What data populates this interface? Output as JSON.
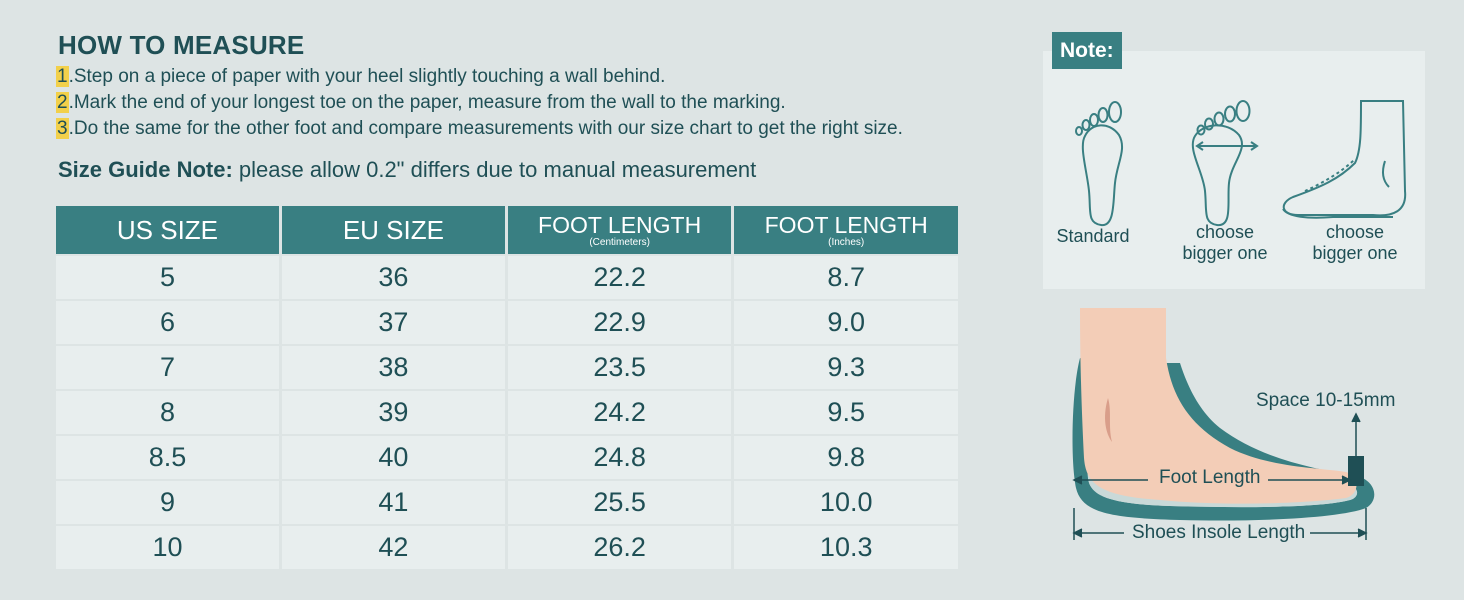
{
  "header": {
    "title": "HOW TO MEASURE"
  },
  "steps": [
    {
      "num": "1",
      "text": ".Step on a piece of paper with your heel slightly touching a wall behind."
    },
    {
      "num": "2",
      "text": ".Mark the end of your longest toe on the paper, measure from the wall to the marking."
    },
    {
      "num": "3",
      "text": ".Do the same for the other foot and compare measurements with our size chart to get the right size."
    }
  ],
  "guide": {
    "label": "Size Guide Note:",
    "text": " please allow 0.2\" differs due to manual measurement"
  },
  "table": {
    "headers": [
      {
        "main": "US SIZE",
        "sub": ""
      },
      {
        "main": "EU SIZE",
        "sub": ""
      },
      {
        "main": "FOOT LENGTH",
        "sub": "(Centimeters)"
      },
      {
        "main": "FOOT LENGTH",
        "sub": "(Inches)"
      }
    ],
    "rows": [
      [
        "5",
        "36",
        "22.2",
        "8.7"
      ],
      [
        "6",
        "37",
        "22.9",
        "9.0"
      ],
      [
        "7",
        "38",
        "23.5",
        "9.3"
      ],
      [
        "8",
        "39",
        "24.2",
        "9.5"
      ],
      [
        "8.5",
        "40",
        "24.8",
        "9.8"
      ],
      [
        "9",
        "41",
        "25.5",
        "10.0"
      ],
      [
        "10",
        "42",
        "26.2",
        "10.3"
      ]
    ]
  },
  "note": {
    "tag": "Note:",
    "labels": [
      "Standard",
      "choose",
      "bigger one",
      "choose",
      "bigger one"
    ]
  },
  "diagram": {
    "space": "Space 10-15mm",
    "foot_length": "Foot Length",
    "insole_length": "Shoes Insole Length"
  },
  "colors": {
    "teal": "#397f82",
    "dark_text": "#1f4f55",
    "highlight": "#f2d04a",
    "skin": "#f3cdb7",
    "bg": "#dde4e4"
  }
}
